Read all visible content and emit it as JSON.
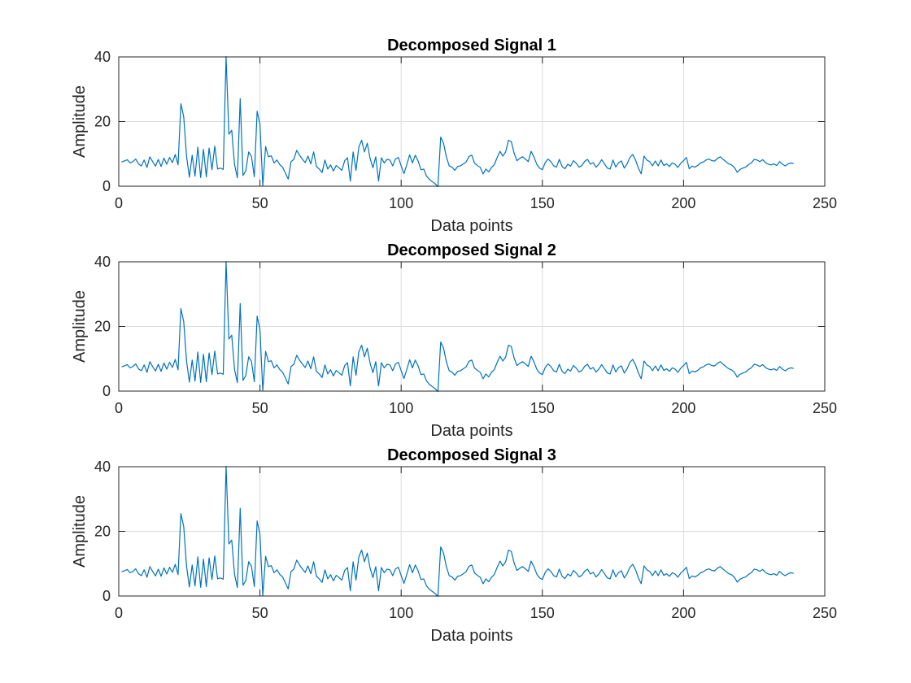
{
  "chart_data": [
    {
      "type": "line",
      "title": "Decomposed Signal 1",
      "xlabel": "Data points",
      "ylabel": "Amplitude",
      "xlim": [
        0,
        250
      ],
      "ylim": [
        0,
        40
      ],
      "xticks": [
        "0",
        "50",
        "100",
        "150",
        "200",
        "250"
      ],
      "yticks": [
        "0",
        "20",
        "40"
      ],
      "grid": true,
      "color": "#0072BD",
      "x_start": 1,
      "values": [
        7.5,
        7.8,
        8.2,
        7.2,
        7.6,
        8.4,
        6.9,
        6.3,
        8.1,
        5.8,
        9.1,
        7.6,
        6.2,
        8.3,
        6.1,
        8.7,
        6.8,
        8.9,
        7.3,
        9.8,
        6.6,
        25.5,
        21.5,
        9.3,
        2.8,
        9.6,
        3.1,
        12.1,
        2.7,
        11.4,
        2.9,
        11.8,
        5.1,
        12.4,
        5.3,
        5.6,
        5.2,
        40.1,
        16.1,
        17.3,
        6.7,
        2.6,
        27.1,
        3.3,
        4.8,
        10.6,
        9.2,
        2.9,
        23.2,
        19.1,
        0.1,
        12.3,
        9.1,
        9.4,
        7.2,
        8.1,
        6.7,
        5.9,
        4.1,
        2.2,
        7.6,
        8.3,
        11.1,
        9.6,
        8.4,
        7.3,
        9.3,
        6.9,
        10.6,
        6.1,
        5.3,
        4.2,
        8.1,
        5.3,
        6.6,
        4.7,
        6.4,
        5.7,
        4.9,
        7.9,
        8.8,
        1.6,
        10.6,
        4.9,
        12.1,
        14.2,
        10.6,
        13.3,
        8.6,
        5.7,
        9.1,
        1.6,
        8.8,
        7.2,
        8.3,
        8.1,
        6.3,
        8.4,
        8.9,
        6.3,
        3.9,
        6.7,
        9.7,
        7.2,
        9.6,
        7.8,
        5.1,
        5.3,
        3.1,
        2.1,
        1.4,
        0.8,
        -0.2,
        15.2,
        13.3,
        9.1,
        6.3,
        5.9,
        4.9,
        6.1,
        6.3,
        6.9,
        7.5,
        9.2,
        9.6,
        7.1,
        6.4,
        5.8,
        3.8,
        5.3,
        4.4,
        5.8,
        6.7,
        8.9,
        10.8,
        9.3,
        10.6,
        14.2,
        13.8,
        10.2,
        7.9,
        8.6,
        9.1,
        8.4,
        7.6,
        10.8,
        9.1,
        6.8,
        5.6,
        5.1,
        7.3,
        8.4,
        7.6,
        6.3,
        5.9,
        8.3,
        6.1,
        5.4,
        6.8,
        6.2,
        7.9,
        7.1,
        5.9,
        6.4,
        7.7,
        8.3,
        6.8,
        7.3,
        5.9,
        6.8,
        8.2,
        6.9,
        5.6,
        5.3,
        8.1,
        5.9,
        7.3,
        7.8,
        5.6,
        6.9,
        8.9,
        9.8,
        8.1,
        5.6,
        3.8,
        9.3,
        8.1,
        7.6,
        6.3,
        7.8,
        6.3,
        8.1,
        6.4,
        6.9,
        6.1,
        7.2,
        6.8,
        5.8,
        7.1,
        7.9,
        8.9,
        5.4,
        6.2,
        5.9,
        6.4,
        7.2,
        7.5,
        8.1,
        8.4,
        7.9,
        7.8,
        8.6,
        9.1,
        8.3,
        7.6,
        6.9,
        6.6,
        5.8,
        4.3,
        5.2,
        5.6,
        5.9,
        6.7,
        7.2,
        8.3,
        8.1,
        7.6,
        8.2,
        7.3,
        6.8,
        6.6,
        6.9,
        6.4,
        7.6,
        6.8,
        6.3,
        6.9,
        7.2,
        7.0
      ]
    },
    {
      "type": "line",
      "title": "Decomposed Signal 2",
      "xlabel": "Data points",
      "ylabel": "Amplitude",
      "xlim": [
        0,
        250
      ],
      "ylim": [
        0,
        40
      ],
      "xticks": [
        "0",
        "50",
        "100",
        "150",
        "200",
        "250"
      ],
      "yticks": [
        "0",
        "20",
        "40"
      ],
      "grid": true,
      "color": "#0072BD",
      "x_start": 1,
      "values": [
        7.5,
        7.8,
        8.2,
        7.2,
        7.6,
        8.4,
        6.9,
        6.3,
        8.1,
        5.8,
        9.1,
        7.6,
        6.2,
        8.3,
        6.1,
        8.7,
        6.8,
        8.9,
        7.3,
        9.8,
        6.6,
        25.5,
        21.5,
        9.3,
        2.8,
        9.6,
        3.1,
        12.1,
        2.7,
        11.4,
        2.9,
        11.8,
        5.1,
        12.4,
        5.3,
        5.6,
        5.2,
        40.1,
        16.1,
        17.3,
        6.7,
        2.6,
        27.1,
        3.3,
        4.8,
        10.6,
        9.2,
        2.9,
        23.2,
        19.1,
        0.1,
        12.3,
        9.1,
        9.4,
        7.2,
        8.1,
        6.7,
        5.9,
        4.1,
        2.2,
        7.6,
        8.3,
        11.1,
        9.6,
        8.4,
        7.3,
        9.3,
        6.9,
        10.6,
        6.1,
        5.3,
        4.2,
        8.1,
        5.3,
        6.6,
        4.7,
        6.4,
        5.7,
        4.9,
        7.9,
        8.8,
        1.6,
        10.6,
        4.9,
        12.1,
        14.2,
        10.6,
        13.3,
        8.6,
        5.7,
        9.1,
        1.6,
        8.8,
        7.2,
        8.3,
        8.1,
        6.3,
        8.4,
        8.9,
        6.3,
        3.9,
        6.7,
        9.7,
        7.2,
        9.6,
        7.8,
        5.1,
        5.3,
        3.1,
        2.1,
        1.4,
        0.8,
        -0.2,
        15.2,
        13.3,
        9.1,
        6.3,
        5.9,
        4.9,
        6.1,
        6.3,
        6.9,
        7.5,
        9.2,
        9.6,
        7.1,
        6.4,
        5.8,
        3.8,
        5.3,
        4.4,
        5.8,
        6.7,
        8.9,
        10.8,
        9.3,
        10.6,
        14.2,
        13.8,
        10.2,
        7.9,
        8.6,
        9.1,
        8.4,
        7.6,
        10.8,
        9.1,
        6.8,
        5.6,
        5.1,
        7.3,
        8.4,
        7.6,
        6.3,
        5.9,
        8.3,
        6.1,
        5.4,
        6.8,
        6.2,
        7.9,
        7.1,
        5.9,
        6.4,
        7.7,
        8.3,
        6.8,
        7.3,
        5.9,
        6.8,
        8.2,
        6.9,
        5.6,
        5.3,
        8.1,
        5.9,
        7.3,
        7.8,
        5.6,
        6.9,
        8.9,
        9.8,
        8.1,
        5.6,
        3.8,
        9.3,
        8.1,
        7.6,
        6.3,
        7.8,
        6.3,
        8.1,
        6.4,
        6.9,
        6.1,
        7.2,
        6.8,
        5.8,
        7.1,
        7.9,
        8.9,
        5.4,
        6.2,
        5.9,
        6.4,
        7.2,
        7.5,
        8.1,
        8.4,
        7.9,
        7.8,
        8.6,
        9.1,
        8.3,
        7.6,
        6.9,
        6.6,
        5.8,
        4.3,
        5.2,
        5.6,
        5.9,
        6.7,
        7.2,
        8.3,
        8.1,
        7.6,
        8.2,
        7.3,
        6.8,
        6.6,
        6.9,
        6.4,
        7.6,
        6.8,
        6.3,
        6.9,
        7.2,
        7.0
      ]
    },
    {
      "type": "line",
      "title": "Decomposed Signal 3",
      "xlabel": "Data points",
      "ylabel": "Amplitude",
      "xlim": [
        0,
        250
      ],
      "ylim": [
        0,
        40
      ],
      "xticks": [
        "0",
        "50",
        "100",
        "150",
        "200",
        "250"
      ],
      "yticks": [
        "0",
        "20",
        "40"
      ],
      "grid": true,
      "color": "#0072BD",
      "x_start": 1,
      "values": [
        7.5,
        7.8,
        8.2,
        7.2,
        7.6,
        8.4,
        6.9,
        6.3,
        8.1,
        5.8,
        9.1,
        7.6,
        6.2,
        8.3,
        6.1,
        8.7,
        6.8,
        8.9,
        7.3,
        9.8,
        6.6,
        25.5,
        21.5,
        9.3,
        2.8,
        9.6,
        3.1,
        12.1,
        2.7,
        11.4,
        2.9,
        11.8,
        5.1,
        12.4,
        5.3,
        5.6,
        5.2,
        40.1,
        16.1,
        17.3,
        6.7,
        2.6,
        27.1,
        3.3,
        4.8,
        10.6,
        9.2,
        2.9,
        23.2,
        19.1,
        0.1,
        12.3,
        9.1,
        9.4,
        7.2,
        8.1,
        6.7,
        5.9,
        4.1,
        2.2,
        7.6,
        8.3,
        11.1,
        9.6,
        8.4,
        7.3,
        9.3,
        6.9,
        10.6,
        6.1,
        5.3,
        4.2,
        8.1,
        5.3,
        6.6,
        4.7,
        6.4,
        5.7,
        4.9,
        7.9,
        8.8,
        1.6,
        10.6,
        4.9,
        12.1,
        14.2,
        10.6,
        13.3,
        8.6,
        5.7,
        9.1,
        1.6,
        8.8,
        7.2,
        8.3,
        8.1,
        6.3,
        8.4,
        8.9,
        6.3,
        3.9,
        6.7,
        9.7,
        7.2,
        9.6,
        7.8,
        5.1,
        5.3,
        3.1,
        2.1,
        1.4,
        0.8,
        -0.2,
        15.2,
        13.3,
        9.1,
        6.3,
        5.9,
        4.9,
        6.1,
        6.3,
        6.9,
        7.5,
        9.2,
        9.6,
        7.1,
        6.4,
        5.8,
        3.8,
        5.3,
        4.4,
        5.8,
        6.7,
        8.9,
        10.8,
        9.3,
        10.6,
        14.2,
        13.8,
        10.2,
        7.9,
        8.6,
        9.1,
        8.4,
        7.6,
        10.8,
        9.1,
        6.8,
        5.6,
        5.1,
        7.3,
        8.4,
        7.6,
        6.3,
        5.9,
        8.3,
        6.1,
        5.4,
        6.8,
        6.2,
        7.9,
        7.1,
        5.9,
        6.4,
        7.7,
        8.3,
        6.8,
        7.3,
        5.9,
        6.8,
        8.2,
        6.9,
        5.6,
        5.3,
        8.1,
        5.9,
        7.3,
        7.8,
        5.6,
        6.9,
        8.9,
        9.8,
        8.1,
        5.6,
        3.8,
        9.3,
        8.1,
        7.6,
        6.3,
        7.8,
        6.3,
        8.1,
        6.4,
        6.9,
        6.1,
        7.2,
        6.8,
        5.8,
        7.1,
        7.9,
        8.9,
        5.4,
        6.2,
        5.9,
        6.4,
        7.2,
        7.5,
        8.1,
        8.4,
        7.9,
        7.8,
        8.6,
        9.1,
        8.3,
        7.6,
        6.9,
        6.6,
        5.8,
        4.3,
        5.2,
        5.6,
        5.9,
        6.7,
        7.2,
        8.3,
        8.1,
        7.6,
        8.2,
        7.3,
        6.8,
        6.6,
        6.9,
        6.4,
        7.6,
        6.8,
        6.3,
        6.9,
        7.2,
        7.0
      ]
    }
  ]
}
